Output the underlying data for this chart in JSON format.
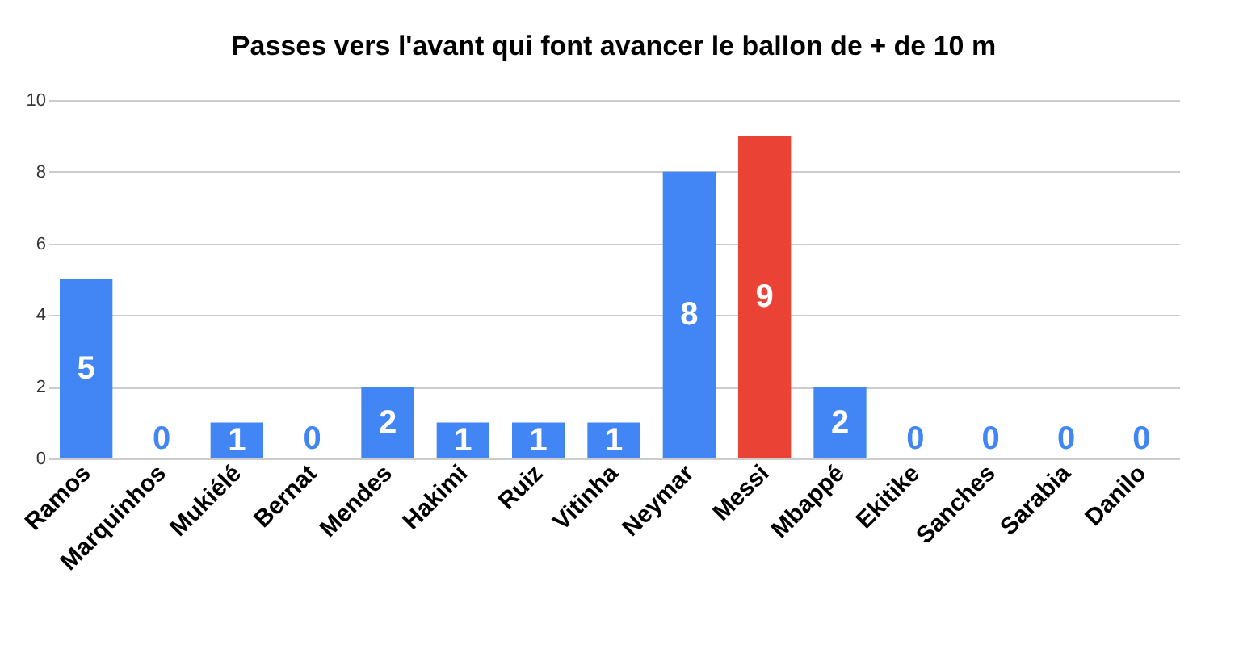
{
  "chart_data": {
    "type": "bar",
    "title": "Passes vers l'avant qui font avancer le ballon de + de 10 m",
    "categories": [
      "Ramos",
      "Marquinhos",
      "Mukiélé",
      "Bernat",
      "Mendes",
      "Hakimi",
      "Ruiz",
      "Vitinha",
      "Neymar",
      "Messi",
      "Mbappé",
      "Ekitike",
      "Sanches",
      "Sarabia",
      "Danilo"
    ],
    "values": [
      5,
      0,
      1,
      0,
      2,
      1,
      1,
      1,
      8,
      9,
      2,
      0,
      0,
      0,
      0
    ],
    "colors": [
      "#4285f4",
      "#4285f4",
      "#4285f4",
      "#4285f4",
      "#4285f4",
      "#4285f4",
      "#4285f4",
      "#4285f4",
      "#4285f4",
      "#ea4335",
      "#4285f4",
      "#4285f4",
      "#4285f4",
      "#4285f4",
      "#4285f4"
    ],
    "ylim": [
      0,
      10
    ],
    "yticks": [
      0,
      2,
      4,
      6,
      8,
      10
    ],
    "grid": "y",
    "data_labels": true
  }
}
